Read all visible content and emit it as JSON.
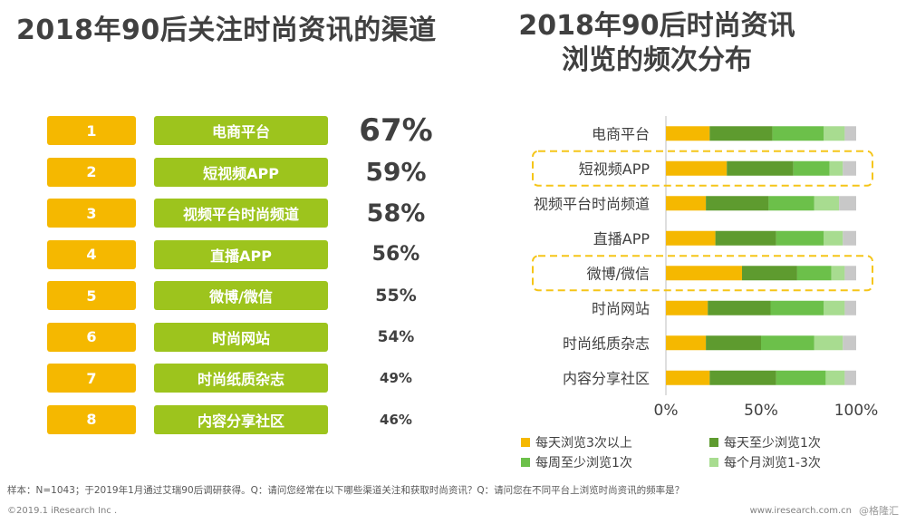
{
  "left_title": "2018年90后关注时尚资讯的渠道",
  "right_title_line1": "2018年90后时尚资讯",
  "right_title_line2": "浏览的频次分布",
  "ranking": [
    {
      "rank": "1",
      "channel": "电商平台",
      "pct": "67%"
    },
    {
      "rank": "2",
      "channel": "短视频APP",
      "pct": "59%"
    },
    {
      "rank": "3",
      "channel": "视频平台时尚频道",
      "pct": "58%"
    },
    {
      "rank": "4",
      "channel": "直播APP",
      "pct": "56%"
    },
    {
      "rank": "5",
      "channel": "微博/微信",
      "pct": "55%"
    },
    {
      "rank": "6",
      "channel": "时尚网站",
      "pct": "54%"
    },
    {
      "rank": "7",
      "channel": "时尚纸质杂志",
      "pct": "49%"
    },
    {
      "rank": "8",
      "channel": "内容分享社区",
      "pct": "46%"
    }
  ],
  "chart_data": {
    "type": "bar",
    "orientation": "horizontal",
    "stacked": true,
    "categories": [
      "电商平台",
      "短视频APP",
      "视频平台时尚频道",
      "直播APP",
      "微博/微信",
      "时尚网站",
      "时尚纸质杂志",
      "内容分享社区"
    ],
    "highlighted": [
      "短视频APP",
      "微博/微信"
    ],
    "series": [
      {
        "name": "每天浏览3次以上",
        "color": "#f5b800",
        "values": [
          23,
          32,
          21,
          26,
          40,
          22,
          21,
          23
        ]
      },
      {
        "name": "每天至少浏览1次",
        "color": "#5e9b2f",
        "values": [
          33,
          35,
          33,
          32,
          29,
          33,
          29,
          35
        ]
      },
      {
        "name": "每周至少浏览1次",
        "color": "#6cc04a",
        "values": [
          27,
          19,
          24,
          25,
          18,
          28,
          28,
          26
        ]
      },
      {
        "name": "每个月浏览1-3次",
        "color": "#a8dc90",
        "values": [
          11,
          7,
          13,
          10,
          7,
          11,
          15,
          10
        ]
      },
      {
        "name": "",
        "color": "#c8c8c8",
        "values": [
          6,
          7,
          9,
          7,
          6,
          6,
          7,
          6
        ]
      }
    ],
    "xticks": [
      "0%",
      "50%",
      "100%"
    ],
    "xlim": [
      0,
      100
    ],
    "legend_position": "bottom"
  },
  "footer": {
    "note": "样本：N=1043；于2019年1月通过艾瑞90后调研获得。Q：请问您经常在以下哪些渠道关注和获取时尚资讯？Q：请问您在不同平台上浏览时尚资讯的频率是？",
    "copyright": "©2019.1 iResearch Inc .",
    "site": "www.iresearch.com.cn",
    "watermark": "@格隆汇"
  }
}
